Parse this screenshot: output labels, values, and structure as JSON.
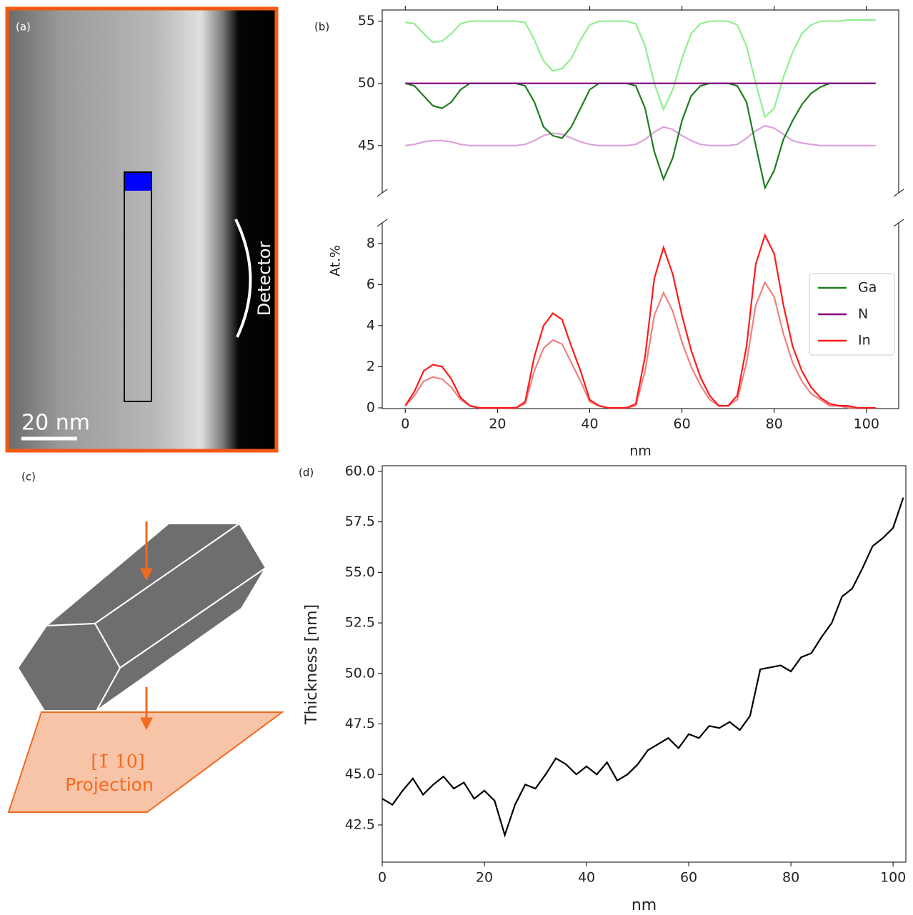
{
  "figure": {
    "panel_labels": [
      "(a)",
      "(b)",
      "(c)",
      "(d)"
    ],
    "scale_bar": "20 nm",
    "detector": "Detector",
    "projection_direction": "[1̄ 10]",
    "projection": "Projection"
  },
  "chart_data": [
    {
      "type": "broken-line",
      "ylabel": "At.%",
      "xlabel": "nm",
      "x": [
        0,
        2,
        4,
        6,
        8,
        10,
        12,
        14,
        16,
        18,
        20,
        22,
        24,
        26,
        28,
        30,
        32,
        34,
        36,
        38,
        40,
        42,
        44,
        46,
        48,
        50,
        52,
        54,
        56,
        58,
        60,
        62,
        64,
        66,
        68,
        70,
        72,
        74,
        76,
        78,
        80,
        82,
        84,
        86,
        88,
        90,
        92,
        94,
        96,
        98,
        100,
        102
      ],
      "xlim": [
        -5,
        107
      ],
      "xticks": [
        0,
        20,
        40,
        60,
        80,
        100
      ],
      "ylim": [
        0,
        9
      ],
      "yticks": [
        0,
        2,
        4,
        6,
        8
      ],
      "ylim_upper": [
        41.2,
        55.9
      ],
      "yticks_upper": [
        45,
        50,
        55
      ],
      "legend": "right",
      "series": [
        {
          "color": "#90ee90",
          "axis": "upper",
          "values": [
            54.9,
            54.8,
            54,
            53.3,
            53.4,
            54,
            54.8,
            55,
            55,
            55,
            55,
            55,
            55,
            54.9,
            53.5,
            51.8,
            51,
            51.2,
            52,
            53.5,
            54.7,
            55,
            55,
            55,
            55,
            54.8,
            53,
            50,
            47.9,
            49.5,
            52,
            54,
            54.8,
            55,
            55,
            55,
            54.7,
            53,
            50,
            47.3,
            48,
            50.5,
            52.5,
            54,
            54.7,
            55,
            55,
            55,
            55.1,
            55.1,
            55.1,
            55.1
          ]
        },
        {
          "color": "#dda0dd",
          "axis": "upper",
          "values": [
            45,
            45.1,
            45.3,
            45.4,
            45.4,
            45.3,
            45.1,
            45,
            45,
            45,
            45,
            45,
            45,
            45.1,
            45.4,
            45.8,
            46,
            45.9,
            45.6,
            45.3,
            45.1,
            45,
            45,
            45,
            45,
            45.1,
            45.5,
            46.1,
            46.5,
            46.3,
            45.8,
            45.4,
            45.1,
            45,
            45,
            45,
            45.1,
            45.6,
            46.2,
            46.6,
            46.4,
            45.9,
            45.4,
            45.2,
            45.1,
            45,
            45,
            45,
            45,
            45,
            45,
            45
          ]
        },
        {
          "name": "Ga",
          "color": "#1e7d1e",
          "axis": "upper",
          "values": [
            50,
            49.8,
            49,
            48.2,
            48,
            48.5,
            49.5,
            50,
            50,
            50,
            50,
            50,
            50,
            49.8,
            48.5,
            46.5,
            45.8,
            45.6,
            46.5,
            48,
            49.5,
            50,
            50,
            50,
            50,
            49.8,
            48,
            44.5,
            42.3,
            44,
            47,
            49,
            49.8,
            50,
            50,
            50,
            49.8,
            48.5,
            45,
            41.6,
            43,
            45.5,
            47,
            48.3,
            49.2,
            49.7,
            50,
            50,
            50,
            50,
            50,
            50
          ]
        },
        {
          "name": "N",
          "color": "#800080",
          "axis": "upper",
          "values": [
            50,
            50,
            50,
            50,
            50,
            50,
            50,
            50,
            50,
            50,
            50,
            50,
            50,
            50,
            50,
            50,
            50,
            50,
            50,
            50,
            50,
            50,
            50,
            50,
            50,
            50,
            50,
            50,
            50,
            50,
            50,
            50,
            50,
            50,
            50,
            50,
            50,
            50,
            50,
            50,
            50,
            50,
            50,
            50,
            50,
            50,
            50,
            50,
            50,
            50,
            50,
            50
          ]
        },
        {
          "color": "#f08080",
          "values": [
            0.1,
            0.6,
            1.3,
            1.5,
            1.4,
            1,
            0.4,
            0.1,
            0,
            0,
            0,
            0,
            0,
            0.2,
            1.8,
            2.9,
            3.3,
            3.1,
            2.2,
            1.3,
            0.3,
            0.1,
            0,
            0,
            0,
            0.1,
            1.8,
            4.5,
            5.6,
            4.7,
            3.2,
            2,
            1.1,
            0.4,
            0.1,
            0.1,
            0.4,
            2.2,
            5,
            6.1,
            5.4,
            3.6,
            2.2,
            1.3,
            0.7,
            0.4,
            0.1,
            0.1,
            0,
            0,
            0,
            0
          ]
        },
        {
          "name": "In",
          "color": "#ff1a1a",
          "values": [
            0.1,
            0.8,
            1.8,
            2.1,
            2,
            1.4,
            0.5,
            0.1,
            0,
            0,
            0,
            0,
            0,
            0.3,
            2.5,
            4,
            4.6,
            4.3,
            3,
            1.8,
            0.4,
            0.1,
            0,
            0,
            0,
            0.2,
            2.5,
            6.3,
            7.8,
            6.5,
            4.5,
            2.8,
            1.5,
            0.6,
            0.1,
            0.1,
            0.6,
            3,
            7,
            8.4,
            7.5,
            5,
            3,
            1.8,
            1,
            0.5,
            0.2,
            0.1,
            0.1,
            0,
            0,
            0
          ]
        }
      ]
    },
    {
      "type": "line",
      "ylabel": "Thickness [nm]",
      "xlabel": "nm",
      "x": [
        0,
        2,
        4,
        6,
        8,
        10,
        12,
        14,
        16,
        18,
        20,
        22,
        24,
        26,
        28,
        30,
        32,
        34,
        36,
        38,
        40,
        42,
        44,
        46,
        48,
        50,
        52,
        54,
        56,
        58,
        60,
        62,
        64,
        66,
        68,
        70,
        72,
        74,
        76,
        78,
        80,
        82,
        84,
        86,
        88,
        90,
        92,
        94,
        96,
        98,
        100,
        102
      ],
      "xlim": [
        0,
        102.5
      ],
      "xticks": [
        0,
        20,
        40,
        60,
        80,
        100
      ],
      "ylim": [
        40.66,
        60.28
      ],
      "yticks": [
        42.5,
        {
          "value": 45,
          "label": "45.0"
        },
        47.5,
        {
          "value": 50,
          "label": "50.0"
        },
        52.5,
        {
          "value": 55,
          "label": "55.0"
        },
        57.5,
        {
          "value": 60,
          "label": "60.0"
        }
      ],
      "series": [
        {
          "color": "#000000",
          "values": [
            43.8,
            43.5,
            44.2,
            44.8,
            44,
            44.5,
            44.9,
            44.3,
            44.6,
            43.8,
            44.2,
            43.7,
            42,
            43.5,
            44.5,
            44.3,
            45,
            45.8,
            45.5,
            45,
            45.4,
            45,
            45.6,
            44.7,
            45,
            45.5,
            46.2,
            46.5,
            46.8,
            46.3,
            47,
            46.8,
            47.4,
            47.3,
            47.6,
            47.2,
            47.9,
            50.2,
            50.3,
            50.4,
            50.1,
            50.8,
            51,
            51.8,
            52.5,
            53.8,
            54.2,
            55.2,
            56.3,
            56.7,
            57.2,
            58.7
          ]
        }
      ]
    }
  ]
}
